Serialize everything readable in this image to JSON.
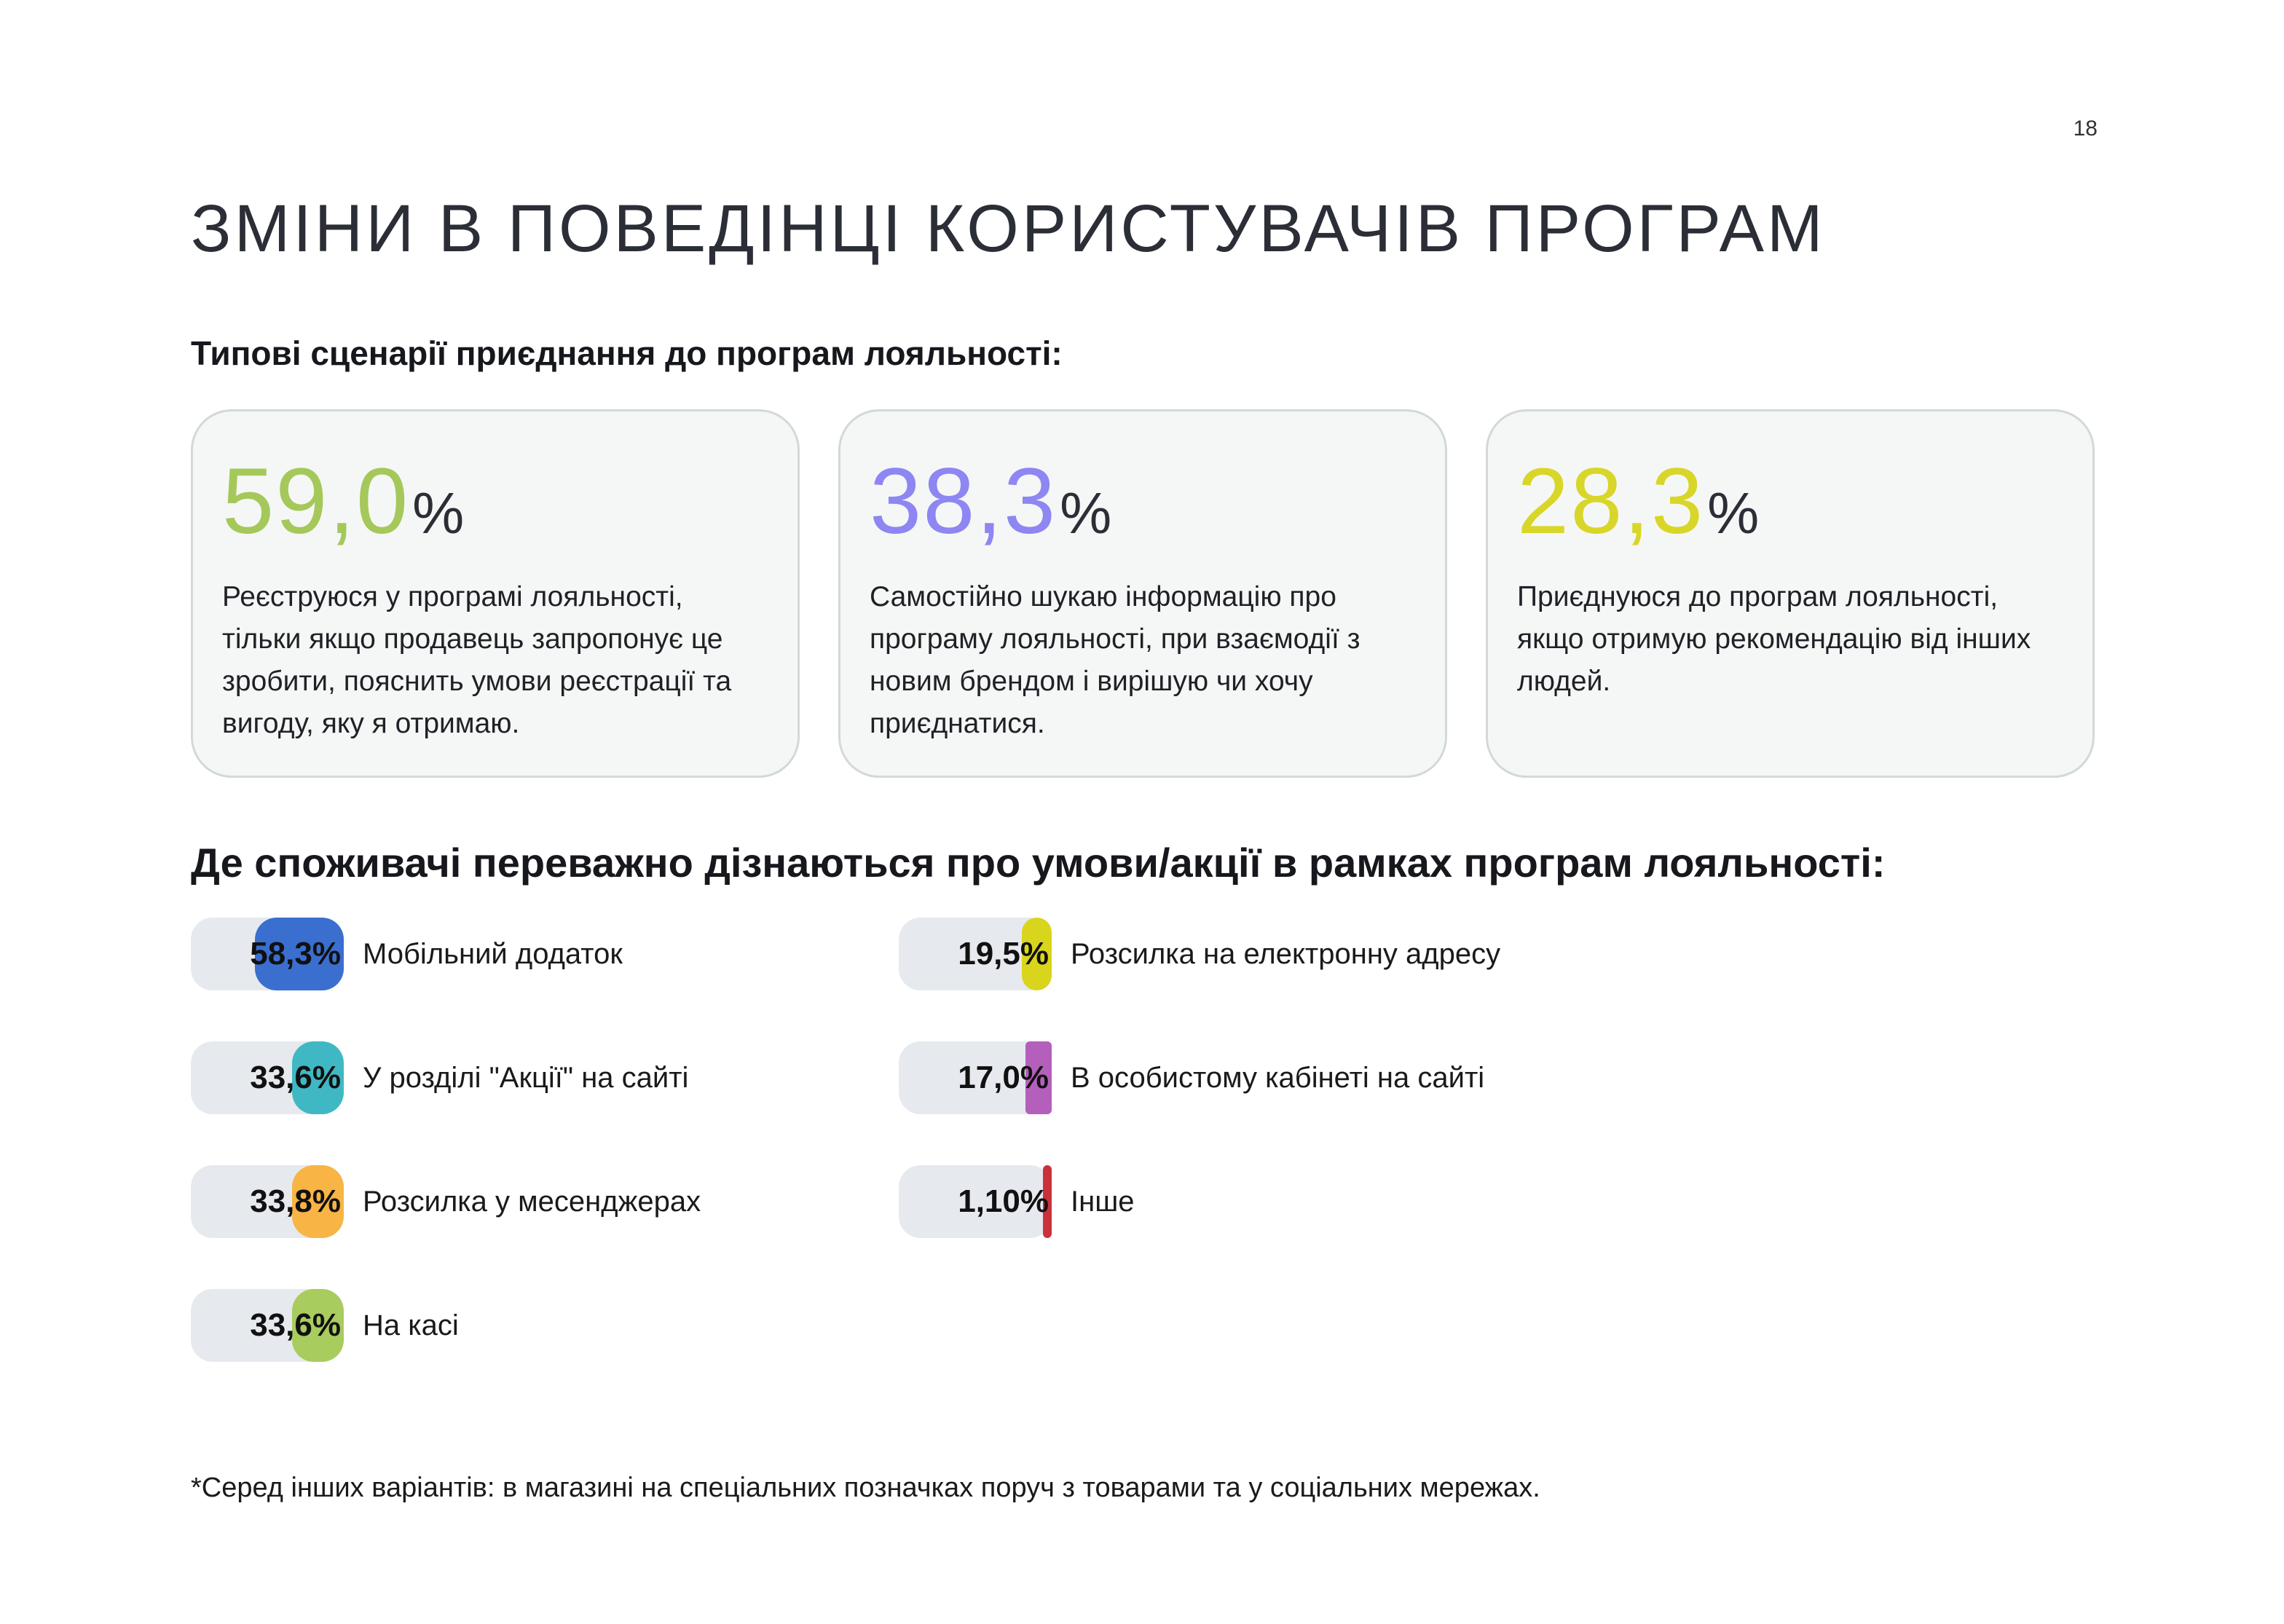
{
  "page_number": "18",
  "title": "ЗМІНИ В ПОВЕДІНЦІ КОРИСТУВАЧІВ ПРОГРАМ",
  "scenarios_heading": "Типові сценарії приєднання до програм лояльності:",
  "scenarios": [
    {
      "value": "59,0",
      "unit": "%",
      "color": "#a5c85a",
      "text": "Реєструюся у програмі лояльності, тільки якщо продавець запропонує це зробити, пояснить умови реєстрації та вигоду, яку я отримаю."
    },
    {
      "value": "38,3",
      "unit": "%",
      "color": "#8e86f2",
      "text": "Самостійно шукаю інформацію про програму лояльності, при взаємодії з новим брендом і вирішую чи хочу приєднатися."
    },
    {
      "value": "28,3",
      "unit": "%",
      "color": "#d8d628",
      "text": "Приєднуюся до програм лояльності, якщо отримую рекомендацію від інших людей."
    }
  ],
  "channels_heading": "Де споживачі переважно дізнаються про умови/акції в рамках програм лояльності:",
  "channels": [
    {
      "value": "58,3%",
      "label": "Мобільний додаток",
      "share": 58.3,
      "color": "#3a6fd0"
    },
    {
      "value": "33,6%",
      "label": "У розділі \"Акції\" на сайті",
      "share": 33.6,
      "color": "#3fb8c4"
    },
    {
      "value": "33,8%",
      "label": "Розсилка у месенджерах",
      "share": 33.8,
      "color": "#f8b445"
    },
    {
      "value": "33,6%",
      "label": "На касі",
      "share": 33.6,
      "color": "#a9cc5e"
    },
    {
      "value": "19,5%",
      "label": "Розсилка на електронну адресу",
      "share": 19.5,
      "color": "#d9d51c"
    },
    {
      "value": "17,0%",
      "label": "В особистому кабінеті на сайті",
      "share": 17.0,
      "color": "#b55fbd"
    },
    {
      "value": "1,10%",
      "label": "Інше",
      "share": 1.1,
      "color": "#c9323b"
    }
  ],
  "footnote": "*Серед інших варіантів: в магазині на спеціальних позначках поруч з товарами та у соціальних мережах."
}
